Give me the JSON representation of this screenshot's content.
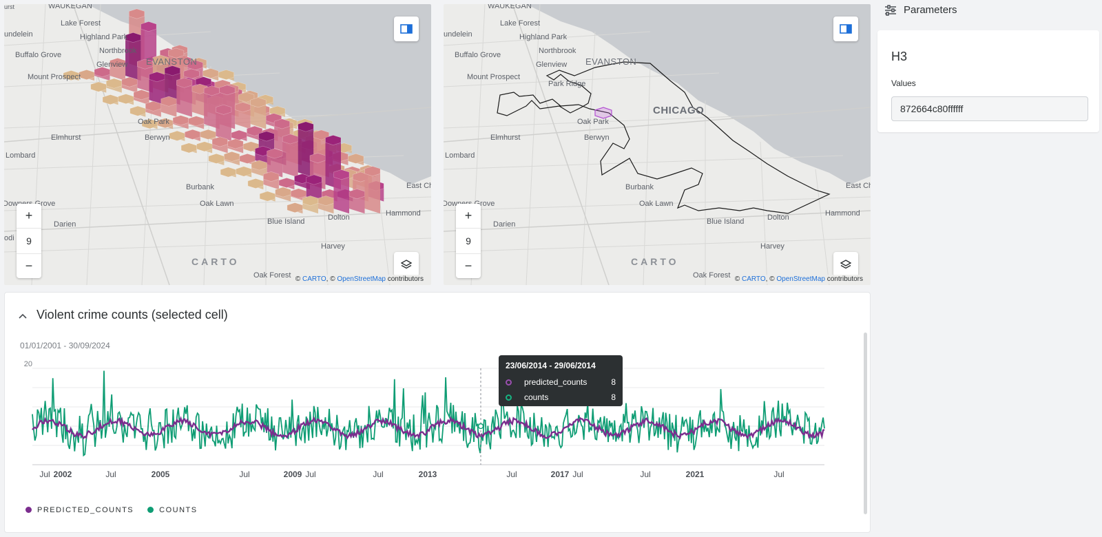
{
  "maps": {
    "labels": [
      "WAUKEGAN",
      "Lake Forest",
      "Highland Park",
      "Buffalo Grove",
      "Northbrook",
      "Glenview",
      "EVANSTON",
      "Mount Prospect",
      "Park Ridge",
      "Oak Park",
      "Elmhurst",
      "Berwyn",
      "Lombard",
      "Burbank",
      "Oak Lawn",
      "Darien",
      "Blue Island",
      "Dolton",
      "Harvey",
      "Hammond",
      "East Ch",
      "Downers Grove",
      "Oak Forest",
      "CHICAGO",
      "urst",
      "undelein",
      "odi"
    ],
    "zoom_in": "+",
    "zoom_level": "9",
    "zoom_out": "−",
    "carto_logo": "CARTO",
    "attribution": {
      "prefix": "©",
      "carto": "CARTO",
      "sep": ", ©",
      "osm": "OpenStreetMap",
      "suffix": "contributors"
    },
    "legend_icon": "legend-panel-icon",
    "layers_icon": "layers-icon"
  },
  "chart_panel": {
    "collapse_icon": "chevron-up-icon",
    "title": "Violent crime counts (selected cell)",
    "date_range": "01/01/2001 - 30/09/2024",
    "tooltip": {
      "title": "23/06/2014 - 29/06/2014",
      "rows": [
        {
          "name": "predicted_counts",
          "value": "8"
        },
        {
          "name": "counts",
          "value": "8"
        }
      ]
    },
    "legend": [
      "PREDICTED_COUNTS",
      "COUNTS"
    ]
  },
  "params": {
    "header_icon": "sliders-icon",
    "header": "Parameters",
    "card_title": "H3",
    "values_label": "Values",
    "values_input": "872664c80ffffff"
  },
  "chart_data": {
    "type": "line",
    "x_range": [
      "2001-01-01",
      "2024-09-30"
    ],
    "ylim": [
      0,
      20
    ],
    "y_ticks": [
      20
    ],
    "x_tick_labels": [
      "Jul",
      "2002",
      "Jul",
      "2005",
      "Jul",
      "2009",
      "Jul",
      "Jul",
      "2013",
      "Jul",
      "2017",
      "Jul",
      "Jul",
      "2021",
      "Jul"
    ],
    "series": [
      {
        "name": "PREDICTED_COUNTS",
        "color": "#7b2d8e",
        "approx_mean": 8,
        "approx_range": [
          6,
          11
        ]
      },
      {
        "name": "COUNTS",
        "color": "#0f9d74",
        "approx_mean": 7,
        "approx_range": [
          0,
          20
        ]
      }
    ],
    "hover_point": {
      "x_label": "23/06/2014 - 29/06/2014",
      "predicted_counts": 8,
      "counts": 8
    },
    "colors": {
      "predicted": "#7b2d8e",
      "counts": "#0f9d74",
      "grid": "#e8e9eb"
    }
  }
}
